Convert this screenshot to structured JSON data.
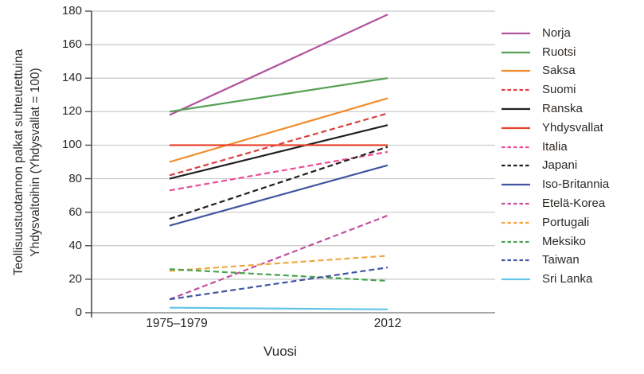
{
  "chart_data": {
    "type": "line",
    "title": "",
    "xlabel": "Vuosi",
    "ylabel": "Teollisuustuotannon palkat suhteutettuina Yhdysvaltoihin (Yhdysvallat = 100)",
    "ylabel_lines": [
      "Teollisuustuotannon palkat suhteutettuina",
      "Yhdysvaltoihin (Yhdysvallat = 100)"
    ],
    "categories": [
      "1975–1979",
      "2012"
    ],
    "ylim": [
      0,
      180
    ],
    "yticks": [
      0,
      20,
      40,
      60,
      80,
      100,
      120,
      140,
      160,
      180
    ],
    "grid": true,
    "legend_position": "right",
    "series": [
      {
        "name": "Norja",
        "color": "#b1539f",
        "dash": false,
        "values": [
          118,
          178
        ]
      },
      {
        "name": "Ruotsi",
        "color": "#55a154",
        "dash": false,
        "values": [
          120,
          140
        ]
      },
      {
        "name": "Saksa",
        "color": "#f18c2c",
        "dash": false,
        "values": [
          90,
          128
        ]
      },
      {
        "name": "Suomi",
        "color": "#d9403e",
        "dash": true,
        "values": [
          82,
          119
        ]
      },
      {
        "name": "Ranska",
        "color": "#231f20",
        "dash": false,
        "values": [
          80,
          112
        ]
      },
      {
        "name": "Yhdysvallat",
        "color": "#e8402a",
        "dash": false,
        "values": [
          100,
          100
        ]
      },
      {
        "name": "Italia",
        "color": "#ea4d96",
        "dash": true,
        "values": [
          73,
          96
        ]
      },
      {
        "name": "Japani",
        "color": "#231f20",
        "dash": true,
        "values": [
          56,
          99
        ]
      },
      {
        "name": "Iso-Britannia",
        "color": "#4155a0",
        "dash": false,
        "values": [
          52,
          88
        ]
      },
      {
        "name": "Etelä-Korea",
        "color": "#c0519f",
        "dash": true,
        "values": [
          8,
          58
        ]
      },
      {
        "name": "Portugali",
        "color": "#f0a73e",
        "dash": true,
        "values": [
          25,
          34
        ]
      },
      {
        "name": "Meksiko",
        "color": "#4aa24e",
        "dash": true,
        "values": [
          26,
          19
        ]
      },
      {
        "name": "Taiwan",
        "color": "#4156a0",
        "dash": true,
        "values": [
          8,
          27
        ]
      },
      {
        "name": "Sri Lanka",
        "color": "#63c5e6",
        "dash": false,
        "values": [
          3,
          2
        ]
      }
    ],
    "colors": {
      "grid": "#c9c9c9",
      "zero_line": "#8a8a8a",
      "axis": "#4d4d4d",
      "text": "#2d2926"
    }
  }
}
